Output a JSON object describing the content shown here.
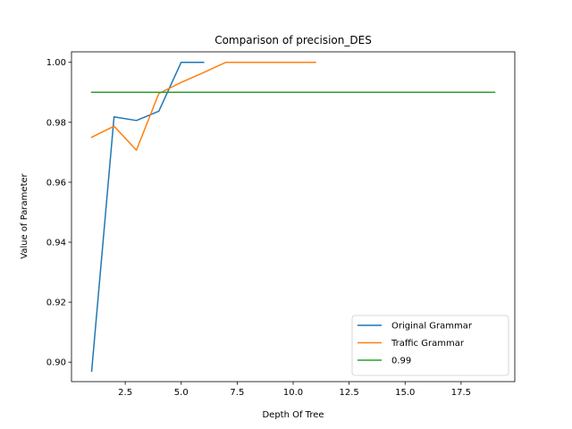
{
  "chart_data": {
    "type": "line",
    "title": "Comparison of precision_DES",
    "xlabel": "Depth Of Tree",
    "ylabel": "Value of Parameter",
    "xlim": [
      0.1,
      19.9
    ],
    "ylim": [
      0.8935,
      1.0035
    ],
    "xticks": [
      2.5,
      5.0,
      7.5,
      10.0,
      12.5,
      15.0,
      17.5
    ],
    "xtick_labels": [
      "2.5",
      "5.0",
      "7.5",
      "10.0",
      "12.5",
      "15.0",
      "17.5"
    ],
    "yticks": [
      0.9,
      0.92,
      0.94,
      0.96,
      0.98,
      1.0
    ],
    "ytick_labels": [
      "0.90",
      "0.92",
      "0.94",
      "0.96",
      "0.98",
      "1.00"
    ],
    "grid": false,
    "legend_position": "lower-right",
    "series": [
      {
        "name": "Original Grammar",
        "color": "#1f77b4",
        "x": [
          1,
          2,
          3,
          4,
          5,
          6
        ],
        "y": [
          0.897,
          0.9818,
          0.9806,
          0.9837,
          1.0,
          1.0
        ]
      },
      {
        "name": "Traffic Grammar",
        "color": "#ff7f0e",
        "x": [
          1,
          2,
          3,
          4,
          5,
          6,
          7,
          8,
          9,
          10,
          11
        ],
        "y": [
          0.975,
          0.9787,
          0.9707,
          0.9896,
          0.9933,
          0.9966,
          1.0,
          1.0,
          1.0,
          1.0,
          1.0
        ]
      },
      {
        "name": "0.99",
        "color": "#2ca02c",
        "x": [
          1,
          19
        ],
        "y": [
          0.99,
          0.99
        ]
      }
    ]
  }
}
